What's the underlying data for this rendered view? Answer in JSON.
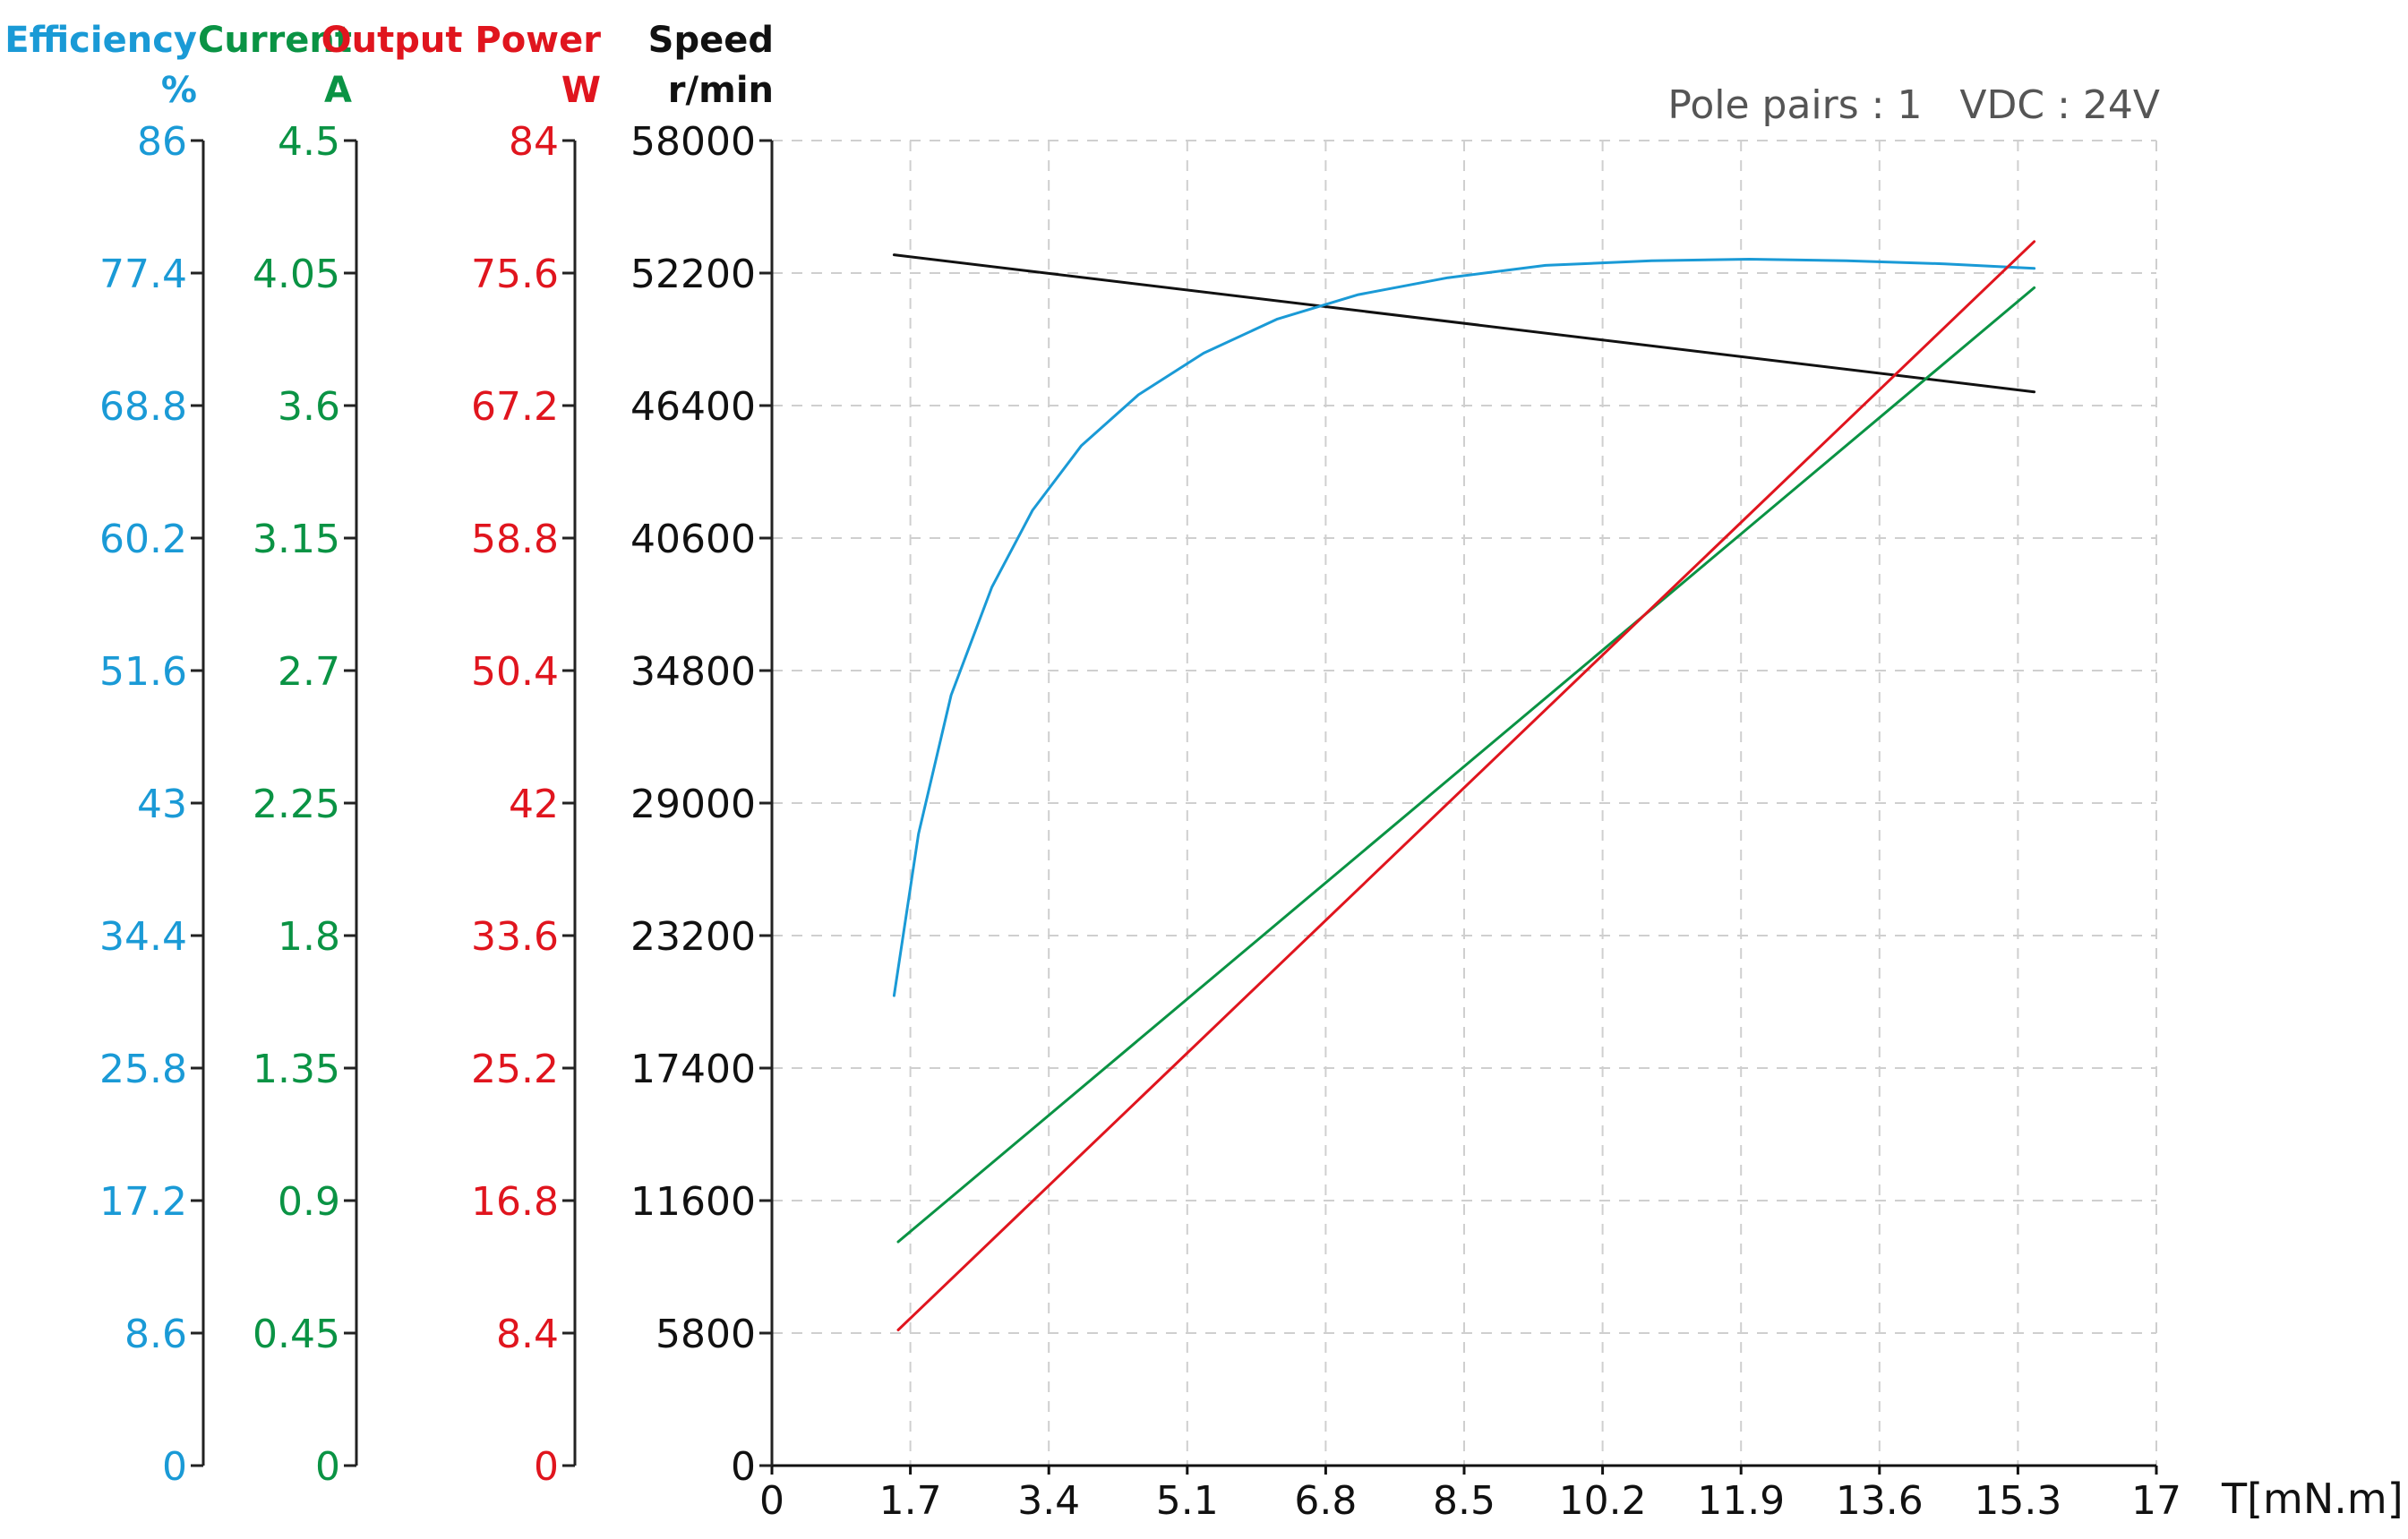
{
  "chart_data": {
    "type": "line",
    "annotation": "Pole pairs : 1   VDC : 24V",
    "x_axis": {
      "label": "T[mN.m]",
      "range": [
        0,
        17
      ],
      "ticks": [
        "0",
        "1.7",
        "3.4",
        "5.1",
        "6.8",
        "8.5",
        "10.2",
        "11.9",
        "13.6",
        "15.3",
        "17"
      ]
    },
    "y_axes": [
      {
        "key": "efficiency",
        "title": "Efficiency",
        "unit": "%",
        "color": "#1a9ad6",
        "range": [
          0,
          86
        ],
        "ticks": [
          "0",
          "8.6",
          "17.2",
          "25.8",
          "34.4",
          "43",
          "51.6",
          "60.2",
          "68.8",
          "77.4",
          "86"
        ]
      },
      {
        "key": "current",
        "title": "Current",
        "unit": "A",
        "color": "#0a9344",
        "range": [
          0,
          4.5
        ],
        "ticks": [
          "0",
          "0.45",
          "0.9",
          "1.35",
          "1.8",
          "2.25",
          "2.7",
          "3.15",
          "3.6",
          "4.05",
          "4.5"
        ]
      },
      {
        "key": "power",
        "title": "Output Power",
        "unit": "W",
        "color": "#e0151e",
        "range": [
          0,
          84
        ],
        "ticks": [
          "0",
          "8.4",
          "16.8",
          "25.2",
          "33.6",
          "42",
          "50.4",
          "58.8",
          "67.2",
          "75.6",
          "84"
        ]
      },
      {
        "key": "speed",
        "title": "Speed",
        "unit": "r/min",
        "color": "#111111",
        "range": [
          0,
          58000
        ],
        "ticks": [
          "0",
          "5800",
          "11600",
          "17400",
          "23200",
          "29000",
          "34800",
          "40600",
          "46400",
          "52200",
          "58000"
        ]
      }
    ],
    "grid": true,
    "series": [
      {
        "axis": "speed",
        "color": "#111111",
        "x": [
          1.5,
          15.5
        ],
        "y": [
          53000,
          47000
        ]
      },
      {
        "axis": "efficiency",
        "color": "#1a9ad6",
        "x": [
          1.5,
          1.8,
          2.2,
          2.7,
          3.2,
          3.8,
          4.5,
          5.3,
          6.2,
          7.2,
          8.3,
          9.5,
          10.8,
          12.0,
          13.2,
          14.4,
          15.5
        ],
        "y": [
          30.5,
          41.0,
          50.0,
          57.0,
          62.0,
          66.2,
          69.5,
          72.2,
          74.4,
          76.0,
          77.1,
          77.9,
          78.2,
          78.3,
          78.2,
          78.0,
          77.7
        ]
      },
      {
        "axis": "current",
        "color": "#0a9344",
        "x": [
          1.55,
          15.5
        ],
        "y": [
          0.76,
          4.0
        ]
      },
      {
        "axis": "power",
        "color": "#e0151e",
        "x": [
          1.55,
          15.5
        ],
        "y": [
          8.6,
          77.6
        ]
      }
    ]
  }
}
